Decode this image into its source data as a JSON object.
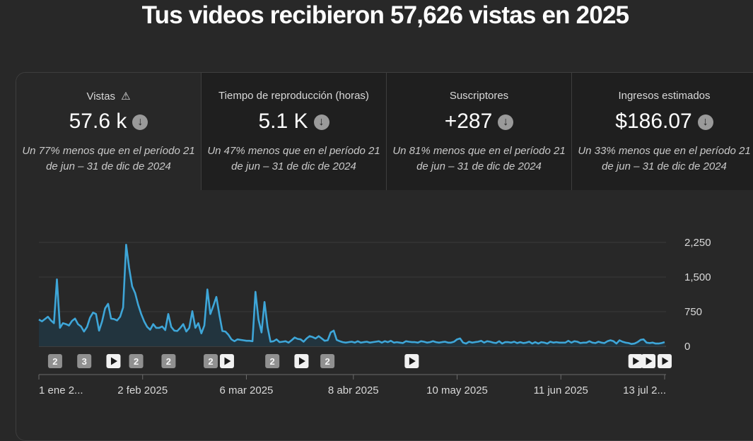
{
  "page": {
    "title": "Tus videos recibieron 57,626 vistas en 2025"
  },
  "metrics": [
    {
      "label": "Vistas",
      "value": "57.6 k",
      "warning": true,
      "trend_icon": "arrow-down-circle-icon",
      "note_line1": "Un 77% menos que en el período 21",
      "note_line2": "de jun – 31 de dic de 2024"
    },
    {
      "label": "Tiempo de reproducción (horas)",
      "value": "5.1 K",
      "warning": false,
      "trend_icon": "arrow-down-circle-icon",
      "note_line1": "Un 47% menos que en el período 21",
      "note_line2": "de jun – 31 de dic de 2024"
    },
    {
      "label": "Suscriptores",
      "value": "+287",
      "warning": false,
      "trend_icon": "arrow-down-circle-icon",
      "note_line1": "Un 81% menos que en el período 21",
      "note_line2": "de jun – 31 de dic de 2024"
    },
    {
      "label": "Ingresos estimados",
      "value": "$186.07",
      "warning": false,
      "trend_icon": "arrow-down-circle-icon",
      "note_line1": "Un 33% menos que en el período 21",
      "note_line2": "de jun – 31 de dic de 2024"
    }
  ],
  "colors": {
    "line": "#3ea6d8",
    "area": "#22343e",
    "badge": "#909090",
    "gridline": "#3a3a3a"
  },
  "chart_data": {
    "type": "area",
    "x_start": "2025-01-01",
    "x_tick_labels": [
      "1 ene 2...",
      "2 feb 2025",
      "6 mar 2025",
      "8 abr 2025",
      "10 may 2025",
      "11 jun 2025",
      "13 jul 2..."
    ],
    "x_tick_dates": [
      "2025-01-01",
      "2025-02-02",
      "2025-03-06",
      "2025-04-08",
      "2025-05-10",
      "2025-06-11",
      "2025-07-13"
    ],
    "x_end": "2025-07-13",
    "y_tick_labels": [
      "2,250",
      "1,500",
      "750",
      "0"
    ],
    "y_ticks": [
      2250,
      1500,
      750,
      0
    ],
    "ylim": [
      0,
      2250
    ],
    "series": [
      {
        "values": [
          580,
          540,
          590,
          640,
          560,
          500,
          1450,
          400,
          500,
          480,
          450,
          550,
          600,
          480,
          430,
          320,
          420,
          620,
          730,
          700,
          340,
          540,
          820,
          920,
          600,
          590,
          560,
          640,
          840,
          2200,
          1700,
          1300,
          1150,
          900,
          700,
          540,
          420,
          360,
          480,
          400,
          400,
          430,
          350,
          700,
          420,
          340,
          330,
          400,
          480,
          320,
          400,
          760,
          400,
          500,
          280,
          450,
          1230,
          700,
          880,
          1070,
          680,
          330,
          320,
          250,
          150,
          110,
          150,
          140,
          130,
          120,
          120,
          110,
          1180,
          580,
          300,
          960,
          420,
          100,
          110,
          150,
          90,
          100,
          110,
          80,
          130,
          190,
          160,
          150,
          100,
          170,
          220,
          200,
          170,
          220,
          170,
          120,
          130,
          300,
          340,
          140,
          110,
          90,
          80,
          90,
          100,
          80,
          110,
          80,
          90,
          100,
          80,
          90,
          100,
          110,
          80,
          110,
          90,
          120,
          80,
          90,
          80,
          70,
          110,
          100,
          90,
          90,
          80,
          110,
          100,
          80,
          90,
          110,
          90,
          80,
          90,
          100,
          80,
          80,
          100,
          150,
          170,
          80,
          60,
          100,
          80,
          90,
          100,
          120,
          80,
          110,
          100,
          80,
          70,
          110,
          60,
          90,
          90,
          80,
          100,
          70,
          90,
          70,
          80,
          100,
          60,
          90,
          60,
          90,
          80,
          60,
          100,
          80,
          90,
          80,
          80,
          80,
          120,
          80,
          110,
          100,
          70,
          80,
          80,
          110,
          80,
          70,
          100,
          80,
          70,
          110,
          130,
          110,
          60,
          130,
          100,
          80,
          70,
          50,
          60,
          90,
          140,
          150,
          80,
          70,
          80,
          60,
          60,
          70,
          90
        ]
      }
    ],
    "annotations": [
      {
        "date": "2025-01-06",
        "kind": "count",
        "text": "2"
      },
      {
        "date": "2025-01-15",
        "kind": "count",
        "text": "3"
      },
      {
        "date": "2025-01-24",
        "kind": "video"
      },
      {
        "date": "2025-01-31",
        "kind": "count",
        "text": "2"
      },
      {
        "date": "2025-02-10",
        "kind": "count",
        "text": "2"
      },
      {
        "date": "2025-02-23",
        "kind": "count",
        "text": "2"
      },
      {
        "date": "2025-02-28",
        "kind": "video"
      },
      {
        "date": "2025-03-14",
        "kind": "count",
        "text": "2"
      },
      {
        "date": "2025-03-23",
        "kind": "video"
      },
      {
        "date": "2025-03-31",
        "kind": "count",
        "text": "2"
      },
      {
        "date": "2025-04-26",
        "kind": "video"
      },
      {
        "date": "2025-07-04",
        "kind": "video"
      },
      {
        "date": "2025-07-08",
        "kind": "video"
      },
      {
        "date": "2025-07-13",
        "kind": "video"
      }
    ]
  }
}
